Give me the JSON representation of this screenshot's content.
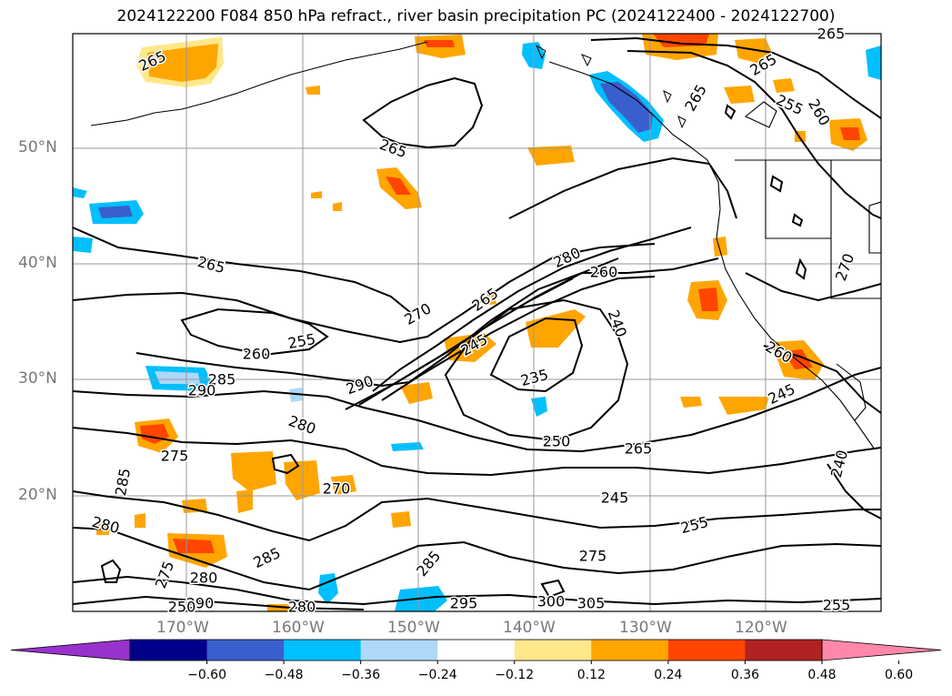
{
  "title": "2024122200 F084 850 hPa refract., river basin precipitation PC (2024122400 - 2024122700)",
  "map": {
    "lat_labels": [
      "50°N",
      "40°N",
      "30°N",
      "20°N"
    ],
    "lon_labels": [
      "170°W",
      "160°W",
      "150°W",
      "140°W",
      "130°W",
      "120°W"
    ],
    "contour_labels": [
      "265",
      "265",
      "260",
      "265",
      "255",
      "265",
      "265",
      "265",
      "280",
      "260",
      "265",
      "270",
      "255",
      "260",
      "285",
      "290",
      "245",
      "240",
      "235",
      "290",
      "250",
      "265",
      "280",
      "275",
      "270",
      "285",
      "245",
      "255",
      "240",
      "280",
      "275",
      "285",
      "285",
      "280",
      "275",
      "295",
      "300",
      "305",
      "290",
      "245",
      "250",
      "270",
      "280",
      "260",
      "255"
    ]
  },
  "colorbar": {
    "ticks": [
      "−0.60",
      "−0.48",
      "−0.36",
      "−0.24",
      "−0.12",
      "0.12",
      "0.24",
      "0.36",
      "0.48",
      "0.60"
    ],
    "colors": [
      "#9932cc",
      "#00008b",
      "#3a5fcd",
      "#00bfff",
      "#add8f8",
      "#ffffff",
      "#ffe88a",
      "#ffa500",
      "#ff4500",
      "#b22222",
      "#ff88aa"
    ]
  }
}
